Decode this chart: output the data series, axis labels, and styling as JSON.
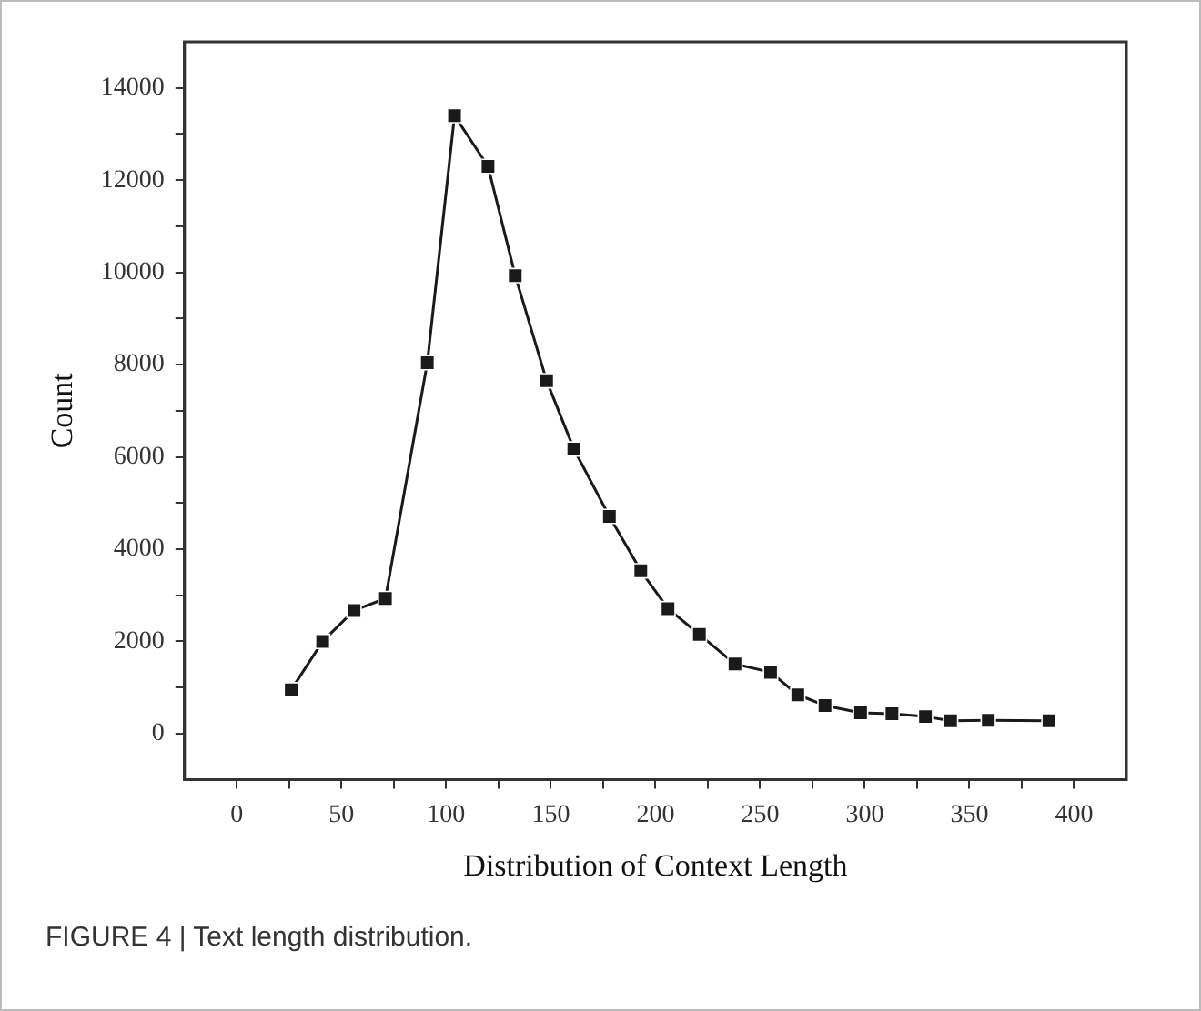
{
  "chart_data": {
    "type": "line",
    "xlabel": "Distribution of Context Length",
    "ylabel": "Count",
    "annotations": [
      "FIGURE 4 | Text length distribution."
    ],
    "marker": "square",
    "grid": false,
    "legend": false,
    "xlim": [
      -25,
      425
    ],
    "ylim": [
      -1000,
      15000
    ],
    "xticks": [
      0,
      {
        "value": 25,
        "label": null
      },
      50,
      {
        "value": 75,
        "label": null
      },
      100,
      {
        "value": 125,
        "label": null
      },
      150,
      {
        "value": 175,
        "label": null
      },
      200,
      {
        "value": 225,
        "label": null
      },
      250,
      {
        "value": 275,
        "label": null
      },
      300,
      {
        "value": 325,
        "label": null
      },
      350,
      {
        "value": 375,
        "label": null
      },
      400
    ],
    "yticks": [
      0,
      {
        "value": 1000,
        "label": null
      },
      2000,
      {
        "value": 3000,
        "label": null
      },
      4000,
      {
        "value": 5000,
        "label": null
      },
      6000,
      {
        "value": 7000,
        "label": null
      },
      8000,
      {
        "value": 9000,
        "label": null
      },
      10000,
      {
        "value": 11000,
        "label": null
      },
      12000,
      {
        "value": 13000,
        "label": null
      },
      14000
    ],
    "series": [
      {
        "color": "#1a1a1a",
        "x": [
          26,
          41,
          56,
          71,
          91,
          104,
          120,
          133,
          148,
          161,
          178,
          193,
          206,
          221,
          238,
          255,
          268,
          281,
          298,
          313,
          329,
          341,
          359,
          388
        ],
        "values": [
          950,
          2000,
          2670,
          2930,
          8040,
          13400,
          12300,
          9930,
          7650,
          6170,
          4710,
          3530,
          2710,
          2150,
          1510,
          1330,
          840,
          610,
          450,
          430,
          370,
          280,
          290,
          280
        ]
      }
    ]
  }
}
